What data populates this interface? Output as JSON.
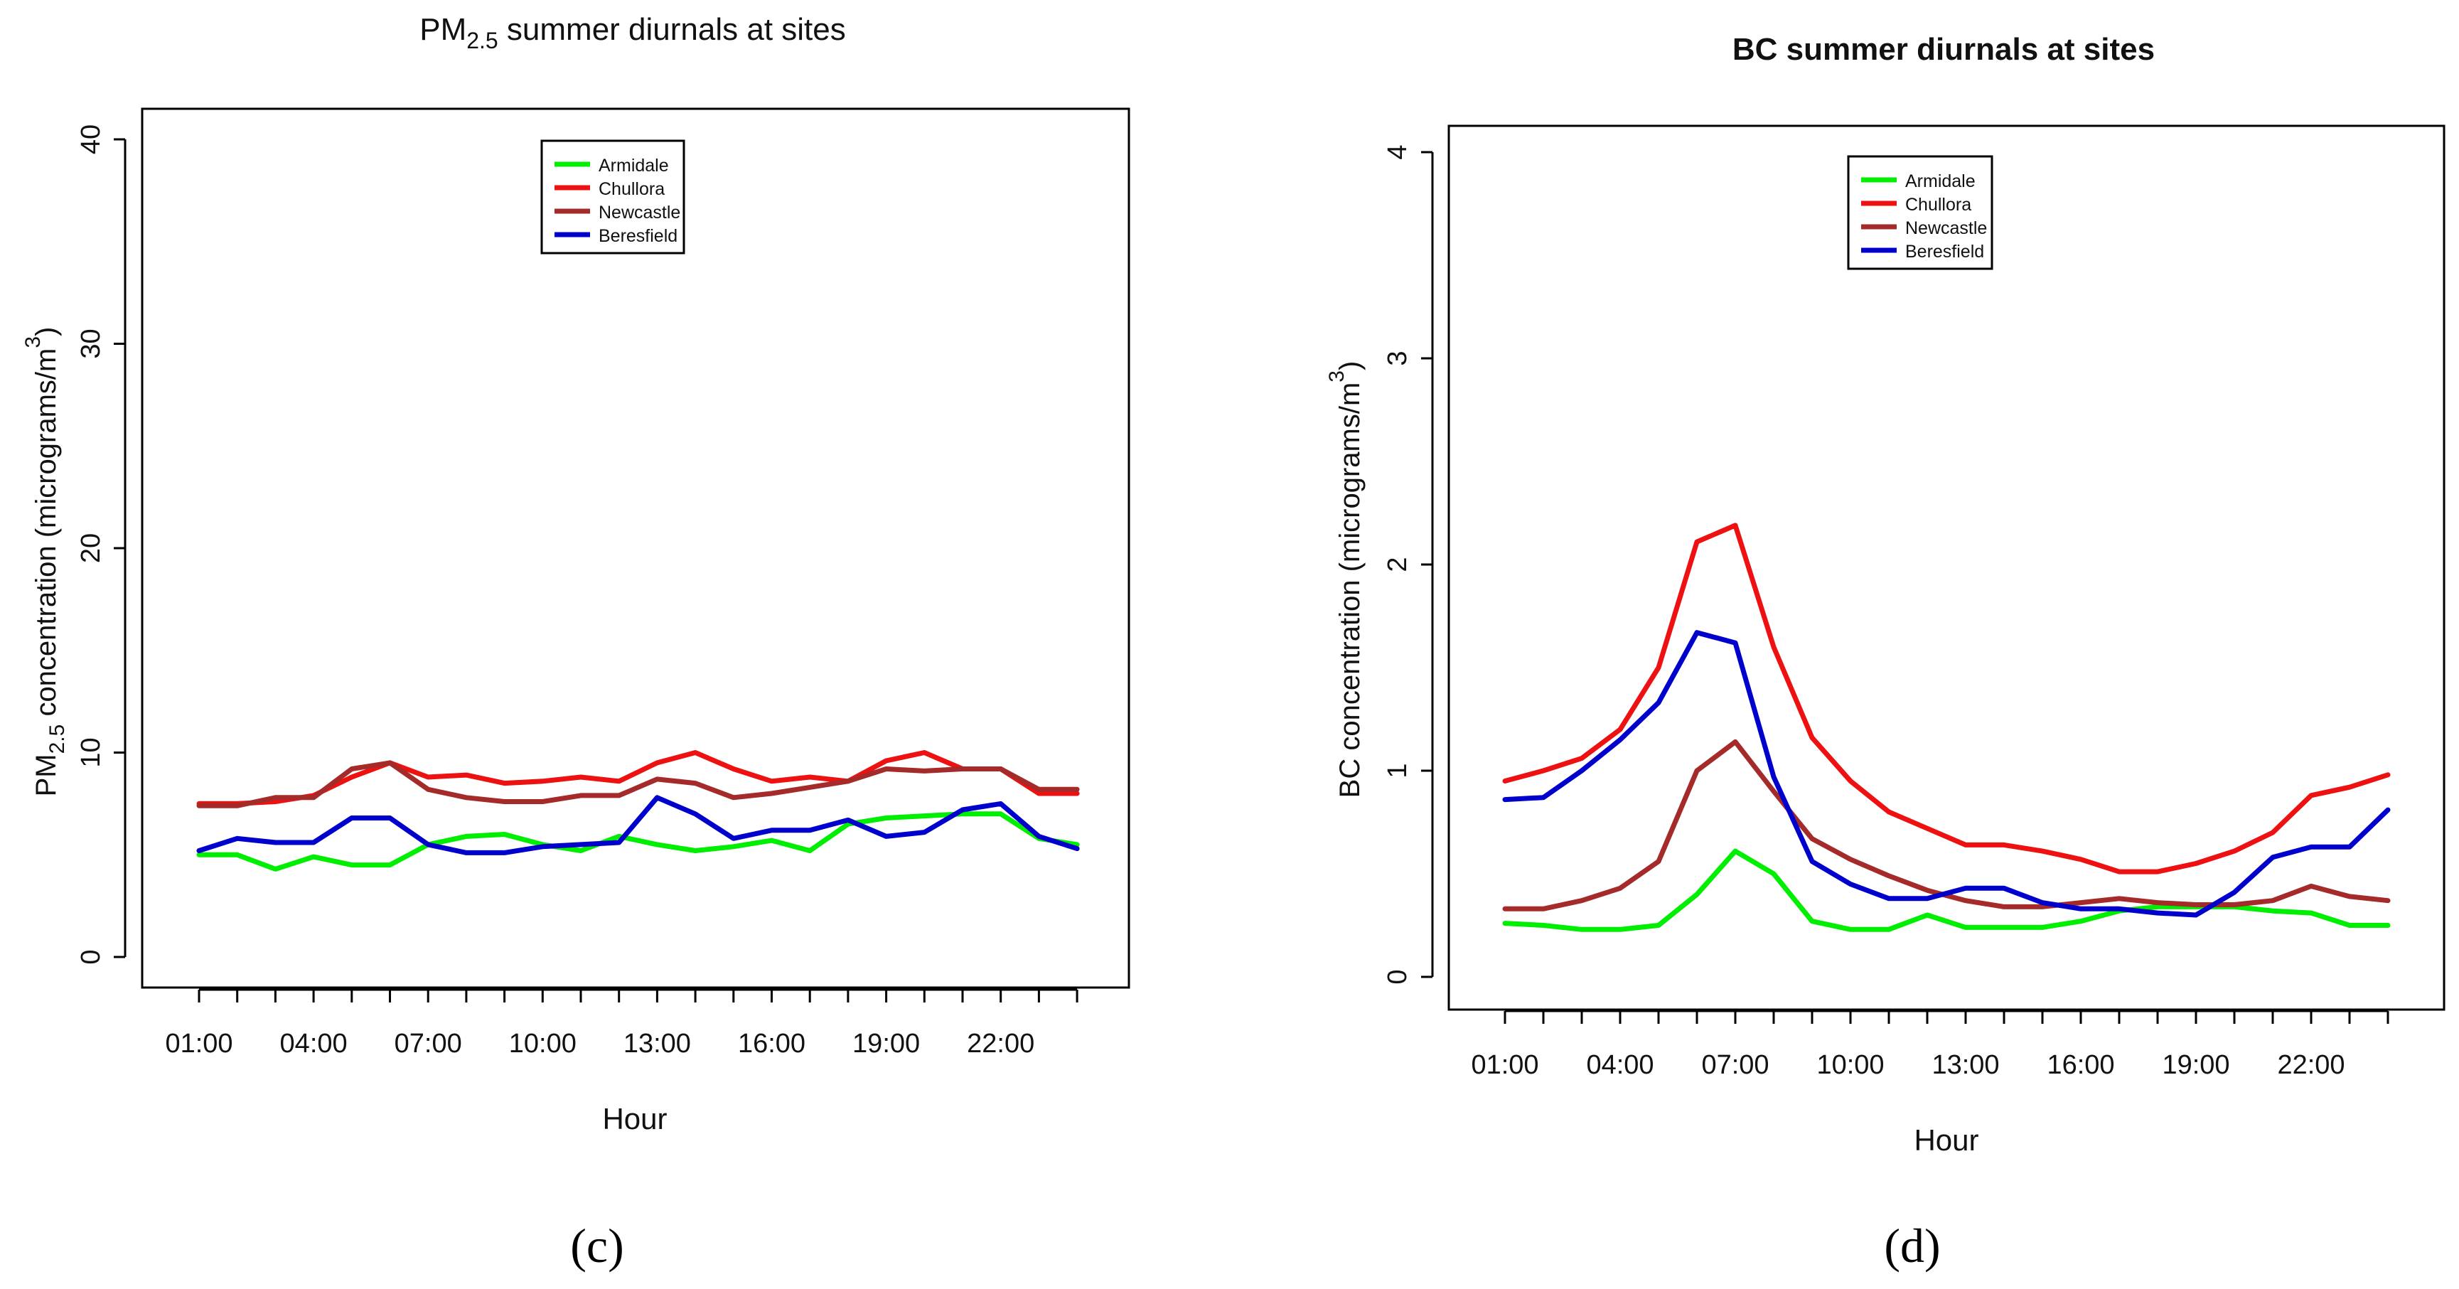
{
  "colors": {
    "Armidale": "#00ee00",
    "Chullora": "#ee1111",
    "Newcastle": "#a52a2a",
    "Beresfield": "#0000cc"
  },
  "chart_data": [
    {
      "type": "line",
      "panel": "c",
      "title_main": "PM",
      "title_sub": "2.5",
      "title_rest": " summer diurnals at sites",
      "ylabel_main": "PM",
      "ylabel_sub": "2.5",
      "ylabel_rest": " concentration (micrograms/m",
      "ylabel_sup": "3",
      "ylabel_close": ")",
      "xlabel": "Hour",
      "caption": "(c)",
      "ylim": [
        0,
        40
      ],
      "yticks": [
        0,
        10,
        20,
        30,
        40
      ],
      "x": [
        1,
        2,
        3,
        4,
        5,
        6,
        7,
        8,
        9,
        10,
        11,
        12,
        13,
        14,
        15,
        16,
        17,
        18,
        19,
        20,
        21,
        22,
        23,
        24
      ],
      "xtick_positions": [
        1,
        4,
        7,
        10,
        13,
        16,
        19,
        22
      ],
      "xtick_labels": [
        "01:00",
        "04:00",
        "07:00",
        "10:00",
        "13:00",
        "16:00",
        "19:00",
        "22:00"
      ],
      "legend": [
        "Armidale",
        "Chullora",
        "Newcastle",
        "Beresfield"
      ],
      "series": [
        {
          "name": "Armidale",
          "values": [
            5.0,
            5.0,
            4.3,
            4.9,
            4.5,
            4.5,
            5.5,
            5.9,
            6.0,
            5.5,
            5.2,
            5.9,
            5.5,
            5.2,
            5.4,
            5.7,
            5.2,
            6.5,
            6.8,
            6.9,
            7.0,
            7.0,
            5.8,
            5.5
          ]
        },
        {
          "name": "Chullora",
          "values": [
            7.5,
            7.5,
            7.6,
            7.9,
            8.8,
            9.5,
            8.8,
            8.9,
            8.5,
            8.6,
            8.8,
            8.6,
            9.5,
            10.0,
            9.2,
            8.6,
            8.8,
            8.6,
            9.6,
            10.0,
            9.2,
            9.2,
            8.0,
            8.0
          ]
        },
        {
          "name": "Newcastle",
          "values": [
            7.4,
            7.4,
            7.8,
            7.8,
            9.2,
            9.5,
            8.2,
            7.8,
            7.6,
            7.6,
            7.9,
            7.9,
            8.7,
            8.5,
            7.8,
            8.0,
            8.3,
            8.6,
            9.2,
            9.1,
            9.2,
            9.2,
            8.2,
            8.2
          ]
        },
        {
          "name": "Beresfield",
          "values": [
            5.2,
            5.8,
            5.6,
            5.6,
            6.8,
            6.8,
            5.5,
            5.1,
            5.1,
            5.4,
            5.5,
            5.6,
            7.8,
            7.0,
            5.8,
            6.2,
            6.2,
            6.7,
            5.9,
            6.1,
            7.2,
            7.5,
            5.9,
            5.3
          ]
        }
      ]
    },
    {
      "type": "line",
      "panel": "d",
      "title": "BC summer diurnals at sites",
      "ylabel_main": "BC concentration (micrograms/m",
      "ylabel_sup": "3",
      "ylabel_close": ")",
      "xlabel": "Hour",
      "caption": "(d)",
      "ylim": [
        0,
        4
      ],
      "yticks": [
        0,
        1,
        2,
        3,
        4
      ],
      "x": [
        1,
        2,
        3,
        4,
        5,
        6,
        7,
        8,
        9,
        10,
        11,
        12,
        13,
        14,
        15,
        16,
        17,
        18,
        19,
        20,
        21,
        22,
        23,
        24
      ],
      "xtick_positions": [
        1,
        4,
        7,
        10,
        13,
        16,
        19,
        22
      ],
      "xtick_labels": [
        "01:00",
        "04:00",
        "07:00",
        "10:00",
        "13:00",
        "16:00",
        "19:00",
        "22:00"
      ],
      "legend": [
        "Armidale",
        "Chullora",
        "Newcastle",
        "Beresfield"
      ],
      "series": [
        {
          "name": "Armidale",
          "values": [
            0.26,
            0.25,
            0.23,
            0.23,
            0.25,
            0.4,
            0.61,
            0.5,
            0.27,
            0.23,
            0.23,
            0.3,
            0.24,
            0.24,
            0.24,
            0.27,
            0.32,
            0.34,
            0.34,
            0.34,
            0.32,
            0.31,
            0.25,
            0.25
          ]
        },
        {
          "name": "Chullora",
          "values": [
            0.95,
            1.0,
            1.06,
            1.2,
            1.5,
            2.11,
            2.19,
            1.6,
            1.16,
            0.95,
            0.8,
            0.72,
            0.64,
            0.64,
            0.61,
            0.57,
            0.51,
            0.51,
            0.55,
            0.61,
            0.7,
            0.88,
            0.92,
            0.98
          ]
        },
        {
          "name": "Newcastle",
          "values": [
            0.33,
            0.33,
            0.37,
            0.43,
            0.56,
            1.0,
            1.14,
            0.9,
            0.67,
            0.57,
            0.49,
            0.42,
            0.37,
            0.34,
            0.34,
            0.36,
            0.38,
            0.36,
            0.35,
            0.35,
            0.37,
            0.44,
            0.39,
            0.37
          ]
        },
        {
          "name": "Beresfield",
          "values": [
            0.86,
            0.87,
            1.0,
            1.15,
            1.33,
            1.67,
            1.62,
            0.97,
            0.56,
            0.45,
            0.38,
            0.38,
            0.43,
            0.43,
            0.36,
            0.33,
            0.33,
            0.31,
            0.3,
            0.41,
            0.58,
            0.63,
            0.63,
            0.81
          ]
        }
      ]
    }
  ]
}
